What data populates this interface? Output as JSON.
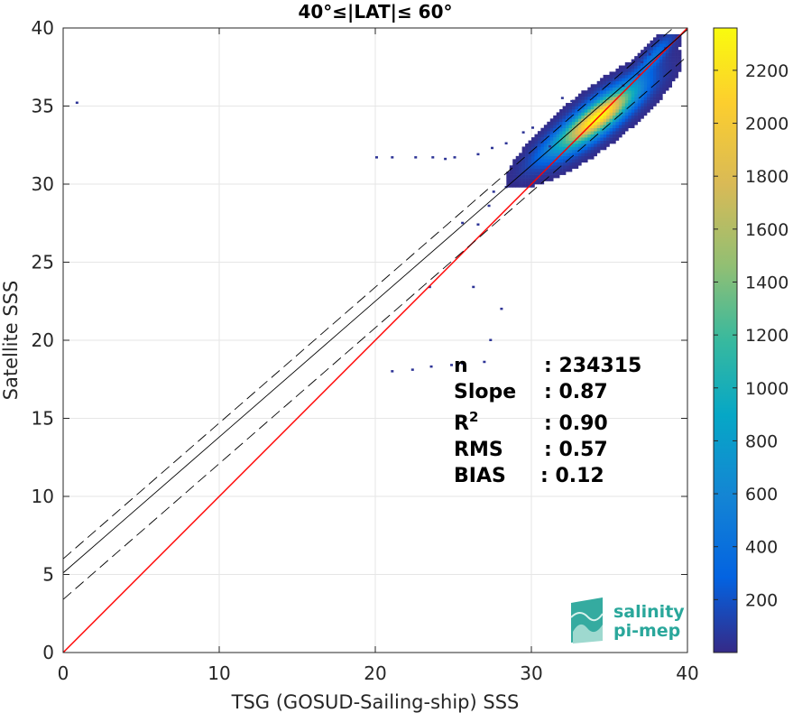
{
  "chart_data": {
    "type": "heatmap",
    "title": "40°≤|LAT|≤ 60°",
    "xlabel": "TSG (GOSUD-Sailing-ship) SSS",
    "ylabel": "Satellite SSS",
    "xlim": [
      0,
      40
    ],
    "ylim": [
      0,
      40
    ],
    "xticks": [
      "0",
      "10",
      "20",
      "30",
      "40"
    ],
    "yticks": [
      "0",
      "5",
      "10",
      "15",
      "20",
      "25",
      "30",
      "35",
      "40"
    ],
    "grid": true,
    "colorbar": {
      "range": [
        0,
        2360
      ],
      "ticks": [
        "200",
        "400",
        "600",
        "800",
        "1000",
        "1200",
        "1400",
        "1600",
        "1800",
        "2000",
        "2200"
      ],
      "colormap": "parula"
    },
    "lines": [
      {
        "role": "identity",
        "color": "#ff0000",
        "slope": 1.0,
        "intercept": 0.0
      },
      {
        "role": "fit",
        "color": "#000000",
        "slope": 0.87,
        "intercept": 5.1
      },
      {
        "role": "fit-upper",
        "color": "#000000",
        "dashed": true,
        "slope": 0.87,
        "intercept": 6.0
      },
      {
        "role": "fit-lower",
        "color": "#000000",
        "dashed": true,
        "slope": 0.87,
        "intercept": 3.4
      }
    ],
    "density_clusters": [
      {
        "x": 34.2,
        "y": 34.2,
        "sx": 1.6,
        "sy": 1.3,
        "peak": 2360
      },
      {
        "x": 37.8,
        "y": 38.1,
        "sx": 0.7,
        "sy": 0.8,
        "peak": 420
      },
      {
        "x": 31.5,
        "y": 32.5,
        "sx": 1.2,
        "sy": 1.0,
        "peak": 260
      }
    ],
    "sparse_points": [
      [
        0.8,
        35.2
      ],
      [
        21.0,
        18.0
      ],
      [
        22.3,
        18.1
      ],
      [
        23.5,
        18.3
      ],
      [
        24.8,
        18.4
      ],
      [
        25.5,
        18.5
      ],
      [
        26.9,
        18.6
      ],
      [
        27.3,
        20.0
      ],
      [
        28.0,
        22.0
      ],
      [
        26.2,
        23.4
      ],
      [
        23.4,
        23.4
      ],
      [
        25.5,
        27.5
      ],
      [
        26.5,
        27.4
      ],
      [
        27.2,
        28.6
      ],
      [
        27.5,
        29.5
      ],
      [
        28.3,
        29.8
      ],
      [
        20.0,
        31.7
      ],
      [
        21.0,
        31.7
      ],
      [
        22.5,
        31.7
      ],
      [
        23.6,
        31.7
      ],
      [
        24.4,
        31.6
      ],
      [
        25.0,
        31.7
      ],
      [
        26.5,
        31.9
      ],
      [
        27.4,
        32.3
      ],
      [
        28.3,
        32.6
      ],
      [
        29.0,
        31.3
      ],
      [
        29.4,
        33.3
      ],
      [
        30.0,
        33.6
      ],
      [
        31.1,
        32.4
      ],
      [
        32.5,
        35.3
      ],
      [
        31.9,
        35.5
      ],
      [
        35.8,
        36.3
      ],
      [
        36.8,
        37.0
      ],
      [
        37.5,
        38.3
      ],
      [
        38.5,
        38.7
      ],
      [
        37.0,
        37.8
      ]
    ],
    "stats": [
      {
        "label": "n",
        "value": ": 234315"
      },
      {
        "label": "Slope",
        "value": ": 0.87"
      },
      {
        "label": "R",
        "sup": "2",
        "value": ": 0.90"
      },
      {
        "label": "RMS",
        "value": ": 0.57"
      },
      {
        "label": "BIAS",
        "value": ": 0.12"
      }
    ]
  },
  "logo": {
    "line1": "salinity",
    "line2": "pi-mep"
  }
}
